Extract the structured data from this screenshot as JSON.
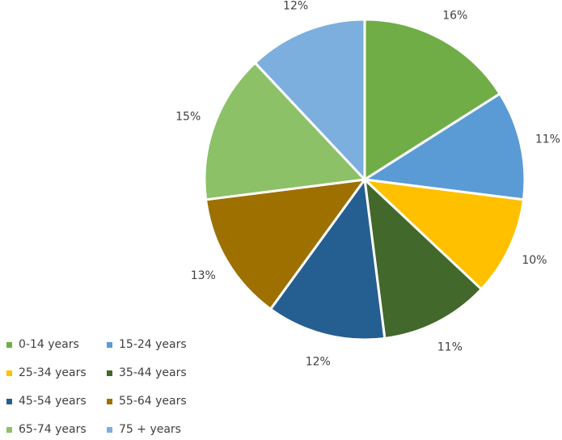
{
  "chart_data": {
    "type": "pie",
    "title": "",
    "categories": [
      "0-14 years",
      "15-24 years",
      "25-34 years",
      "35-44 years",
      "45-54 years",
      "55-64 years",
      "65-74 years",
      "75 + years"
    ],
    "values": [
      16,
      11,
      10,
      11,
      12,
      13,
      15,
      12
    ],
    "labels": [
      "16%",
      "11%",
      "10%",
      "11%",
      "12%",
      "13%",
      "15%",
      "12%"
    ],
    "colors": [
      "#70AD47",
      "#5B9BD5",
      "#FFC000",
      "#43682B",
      "#255E91",
      "#9E7000",
      "#8CC168",
      "#7CAFDD"
    ],
    "legend_position": "bottom-left"
  }
}
